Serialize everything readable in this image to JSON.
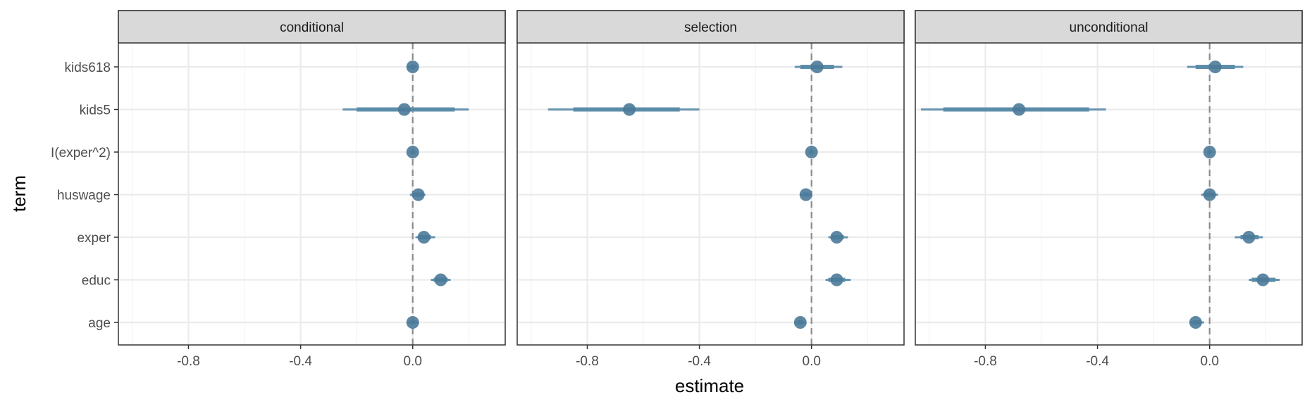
{
  "chart_data": {
    "type": "coefficient-plot",
    "facet_by": "component",
    "panels": [
      "conditional",
      "selection",
      "unconditional"
    ],
    "terms": [
      "kids618",
      "kids5",
      "I(exper^2)",
      "huswage",
      "exper",
      "educ",
      "age"
    ],
    "xlabel": "estimate",
    "ylabel": "term",
    "xlim": [
      -1.05,
      0.33
    ],
    "x_ticks": [
      -0.8,
      -0.4,
      0.0
    ],
    "x_tick_labels": [
      "-0.8",
      "-0.4",
      "0.0"
    ],
    "reference_line": 0,
    "grid": true,
    "colors": {
      "point": "#4b7a99",
      "interval": "#5a8aa8",
      "reference": "#8c8c8c",
      "strip_bg": "#d9d9d9",
      "grid_major": "#ebebeb",
      "grid_minor": "#f4f4f4",
      "border": "#333333"
    },
    "series": [
      {
        "panel": "conditional",
        "points": [
          {
            "term": "kids618",
            "estimate": 0.0,
            "ci_inner": [
              -0.01,
              0.01
            ],
            "ci_outer": [
              -0.02,
              0.02
            ]
          },
          {
            "term": "kids5",
            "estimate": -0.03,
            "ci_inner": [
              -0.2,
              0.15
            ],
            "ci_outer": [
              -0.25,
              0.2
            ]
          },
          {
            "term": "I(exper^2)",
            "estimate": 0.0,
            "ci_inner": [
              -0.005,
              0.005
            ],
            "ci_outer": [
              -0.01,
              0.01
            ]
          },
          {
            "term": "huswage",
            "estimate": 0.02,
            "ci_inner": [
              0.0,
              0.035
            ],
            "ci_outer": [
              -0.01,
              0.045
            ]
          },
          {
            "term": "exper",
            "estimate": 0.04,
            "ci_inner": [
              0.02,
              0.065
            ],
            "ci_outer": [
              0.01,
              0.08
            ]
          },
          {
            "term": "educ",
            "estimate": 0.1,
            "ci_inner": [
              0.075,
              0.125
            ],
            "ci_outer": [
              0.065,
              0.135
            ]
          },
          {
            "term": "age",
            "estimate": 0.0,
            "ci_inner": [
              -0.01,
              0.01
            ],
            "ci_outer": [
              -0.02,
              0.02
            ]
          }
        ]
      },
      {
        "panel": "selection",
        "points": [
          {
            "term": "kids618",
            "estimate": 0.02,
            "ci_inner": [
              -0.04,
              0.08
            ],
            "ci_outer": [
              -0.06,
              0.11
            ]
          },
          {
            "term": "kids5",
            "estimate": -0.65,
            "ci_inner": [
              -0.85,
              -0.47
            ],
            "ci_outer": [
              -0.94,
              -0.4
            ]
          },
          {
            "term": "I(exper^2)",
            "estimate": 0.0,
            "ci_inner": [
              -0.005,
              0.005
            ],
            "ci_outer": [
              -0.01,
              0.01
            ]
          },
          {
            "term": "huswage",
            "estimate": -0.02,
            "ci_inner": [
              -0.03,
              -0.01
            ],
            "ci_outer": [
              -0.04,
              0.0
            ]
          },
          {
            "term": "exper",
            "estimate": 0.09,
            "ci_inner": [
              0.07,
              0.115
            ],
            "ci_outer": [
              0.06,
              0.13
            ]
          },
          {
            "term": "educ",
            "estimate": 0.09,
            "ci_inner": [
              0.06,
              0.12
            ],
            "ci_outer": [
              0.05,
              0.14
            ]
          },
          {
            "term": "age",
            "estimate": -0.04,
            "ci_inner": [
              -0.05,
              -0.03
            ],
            "ci_outer": [
              -0.06,
              -0.02
            ]
          }
        ]
      },
      {
        "panel": "unconditional",
        "points": [
          {
            "term": "kids618",
            "estimate": 0.02,
            "ci_inner": [
              -0.05,
              0.09
            ],
            "ci_outer": [
              -0.08,
              0.12
            ]
          },
          {
            "term": "kids5",
            "estimate": -0.68,
            "ci_inner": [
              -0.95,
              -0.43
            ],
            "ci_outer": [
              -1.03,
              -0.37
            ]
          },
          {
            "term": "I(exper^2)",
            "estimate": 0.0,
            "ci_inner": [
              -0.005,
              0.005
            ],
            "ci_outer": [
              -0.01,
              0.01
            ]
          },
          {
            "term": "huswage",
            "estimate": 0.0,
            "ci_inner": [
              -0.02,
              0.02
            ],
            "ci_outer": [
              -0.03,
              0.03
            ]
          },
          {
            "term": "exper",
            "estimate": 0.14,
            "ci_inner": [
              0.11,
              0.175
            ],
            "ci_outer": [
              0.09,
              0.19
            ]
          },
          {
            "term": "educ",
            "estimate": 0.19,
            "ci_inner": [
              0.15,
              0.235
            ],
            "ci_outer": [
              0.14,
              0.25
            ]
          },
          {
            "term": "age",
            "estimate": -0.05,
            "ci_inner": [
              -0.06,
              -0.03
            ],
            "ci_outer": [
              -0.07,
              -0.02
            ]
          }
        ]
      }
    ]
  }
}
